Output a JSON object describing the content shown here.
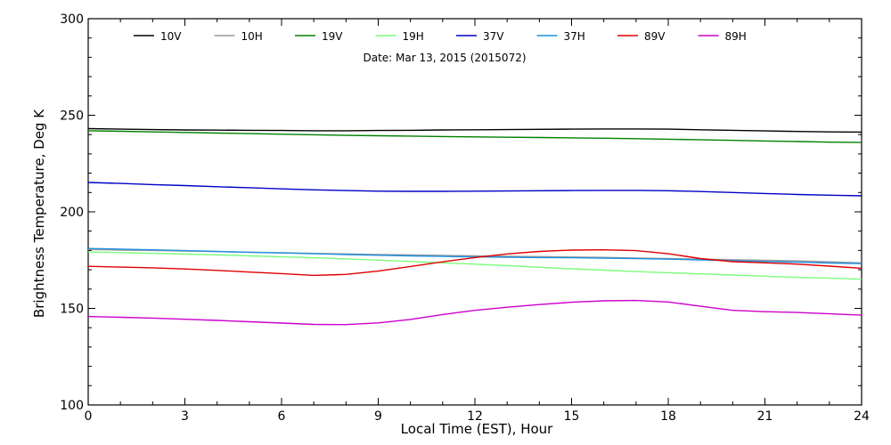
{
  "chart_data": {
    "type": "line",
    "annotation": "Date: Mar 13, 2015 (2015072)",
    "xlabel": "Local Time (EST), Hour",
    "ylabel": "Brightness Temperature, Deg K",
    "xlim": [
      0,
      24
    ],
    "ylim": [
      100,
      300
    ],
    "xticks": [
      0,
      3,
      6,
      9,
      12,
      15,
      18,
      21,
      24
    ],
    "yticks": [
      100,
      150,
      200,
      250,
      300
    ],
    "grid": false,
    "legend_position": "top",
    "x": [
      0,
      1,
      2,
      3,
      4,
      5,
      6,
      7,
      8,
      9,
      10,
      11,
      12,
      13,
      14,
      15,
      16,
      17,
      18,
      19,
      20,
      21,
      22,
      23,
      24
    ],
    "series": [
      {
        "name": "10V",
        "color": "#000000",
        "values": [
          243.1,
          242.8,
          242.6,
          242.4,
          242.3,
          242.2,
          242.1,
          242.0,
          242.0,
          242.1,
          242.2,
          242.4,
          242.5,
          242.6,
          242.7,
          242.8,
          242.9,
          242.9,
          242.8,
          242.5,
          242.2,
          241.9,
          241.6,
          241.4,
          241.3
        ]
      },
      {
        "name": "10H",
        "color": "#999999",
        "values": [
          180.5,
          180.2,
          180.0,
          179.7,
          179.4,
          179.1,
          178.8,
          178.5,
          178.2,
          177.9,
          177.7,
          177.4,
          177.2,
          177.0,
          176.8,
          176.6,
          176.4,
          176.1,
          175.8,
          175.5,
          175.2,
          174.9,
          174.6,
          174.1,
          173.6
        ]
      },
      {
        "name": "19V",
        "color": "#008000",
        "values": [
          242.0,
          241.7,
          241.4,
          241.1,
          240.8,
          240.5,
          240.2,
          239.9,
          239.6,
          239.4,
          239.2,
          239.0,
          238.8,
          238.6,
          238.5,
          238.3,
          238.1,
          237.9,
          237.6,
          237.3,
          237.0,
          236.7,
          236.4,
          236.1,
          235.9
        ]
      },
      {
        "name": "19H",
        "color": "#7CFC7C",
        "values": [
          179.2,
          178.9,
          178.5,
          178.1,
          177.7,
          177.2,
          176.7,
          176.2,
          175.6,
          175.0,
          174.3,
          173.6,
          172.9,
          172.1,
          171.3,
          170.5,
          169.8,
          169.1,
          168.5,
          167.9,
          167.3,
          166.7,
          166.1,
          165.6,
          165.1
        ]
      },
      {
        "name": "37V",
        "color": "#0000C8",
        "values": [
          215.2,
          214.7,
          214.1,
          213.6,
          213.0,
          212.5,
          211.9,
          211.4,
          211.0,
          210.7,
          210.6,
          210.6,
          210.7,
          210.8,
          210.9,
          211.0,
          211.1,
          211.1,
          210.9,
          210.5,
          210.0,
          209.5,
          209.0,
          208.6,
          208.3
        ]
      },
      {
        "name": "37H",
        "color": "#1E90E0",
        "values": [
          181.0,
          180.7,
          180.3,
          179.9,
          179.5,
          179.1,
          178.7,
          178.3,
          177.9,
          177.5,
          177.2,
          176.9,
          176.7,
          176.5,
          176.3,
          176.2,
          176.0,
          175.8,
          175.5,
          175.1,
          174.7,
          174.3,
          173.9,
          173.5,
          173.2
        ]
      },
      {
        "name": "89V",
        "color": "#E00000",
        "values": [
          171.8,
          171.4,
          171.0,
          170.4,
          169.7,
          168.8,
          168.0,
          167.1,
          167.6,
          169.3,
          171.7,
          174.1,
          176.3,
          178.2,
          179.5,
          180.2,
          180.3,
          179.9,
          178.3,
          175.8,
          174.2,
          173.6,
          172.9,
          171.9,
          170.8
        ]
      },
      {
        "name": "89H",
        "color": "#CC00CC",
        "values": [
          145.8,
          145.4,
          145.0,
          144.4,
          143.8,
          143.1,
          142.4,
          141.7,
          141.6,
          142.5,
          144.3,
          146.8,
          149.0,
          150.6,
          152.0,
          153.2,
          153.9,
          154.1,
          153.3,
          151.1,
          149.0,
          148.3,
          147.9,
          147.2,
          146.5
        ]
      }
    ]
  }
}
